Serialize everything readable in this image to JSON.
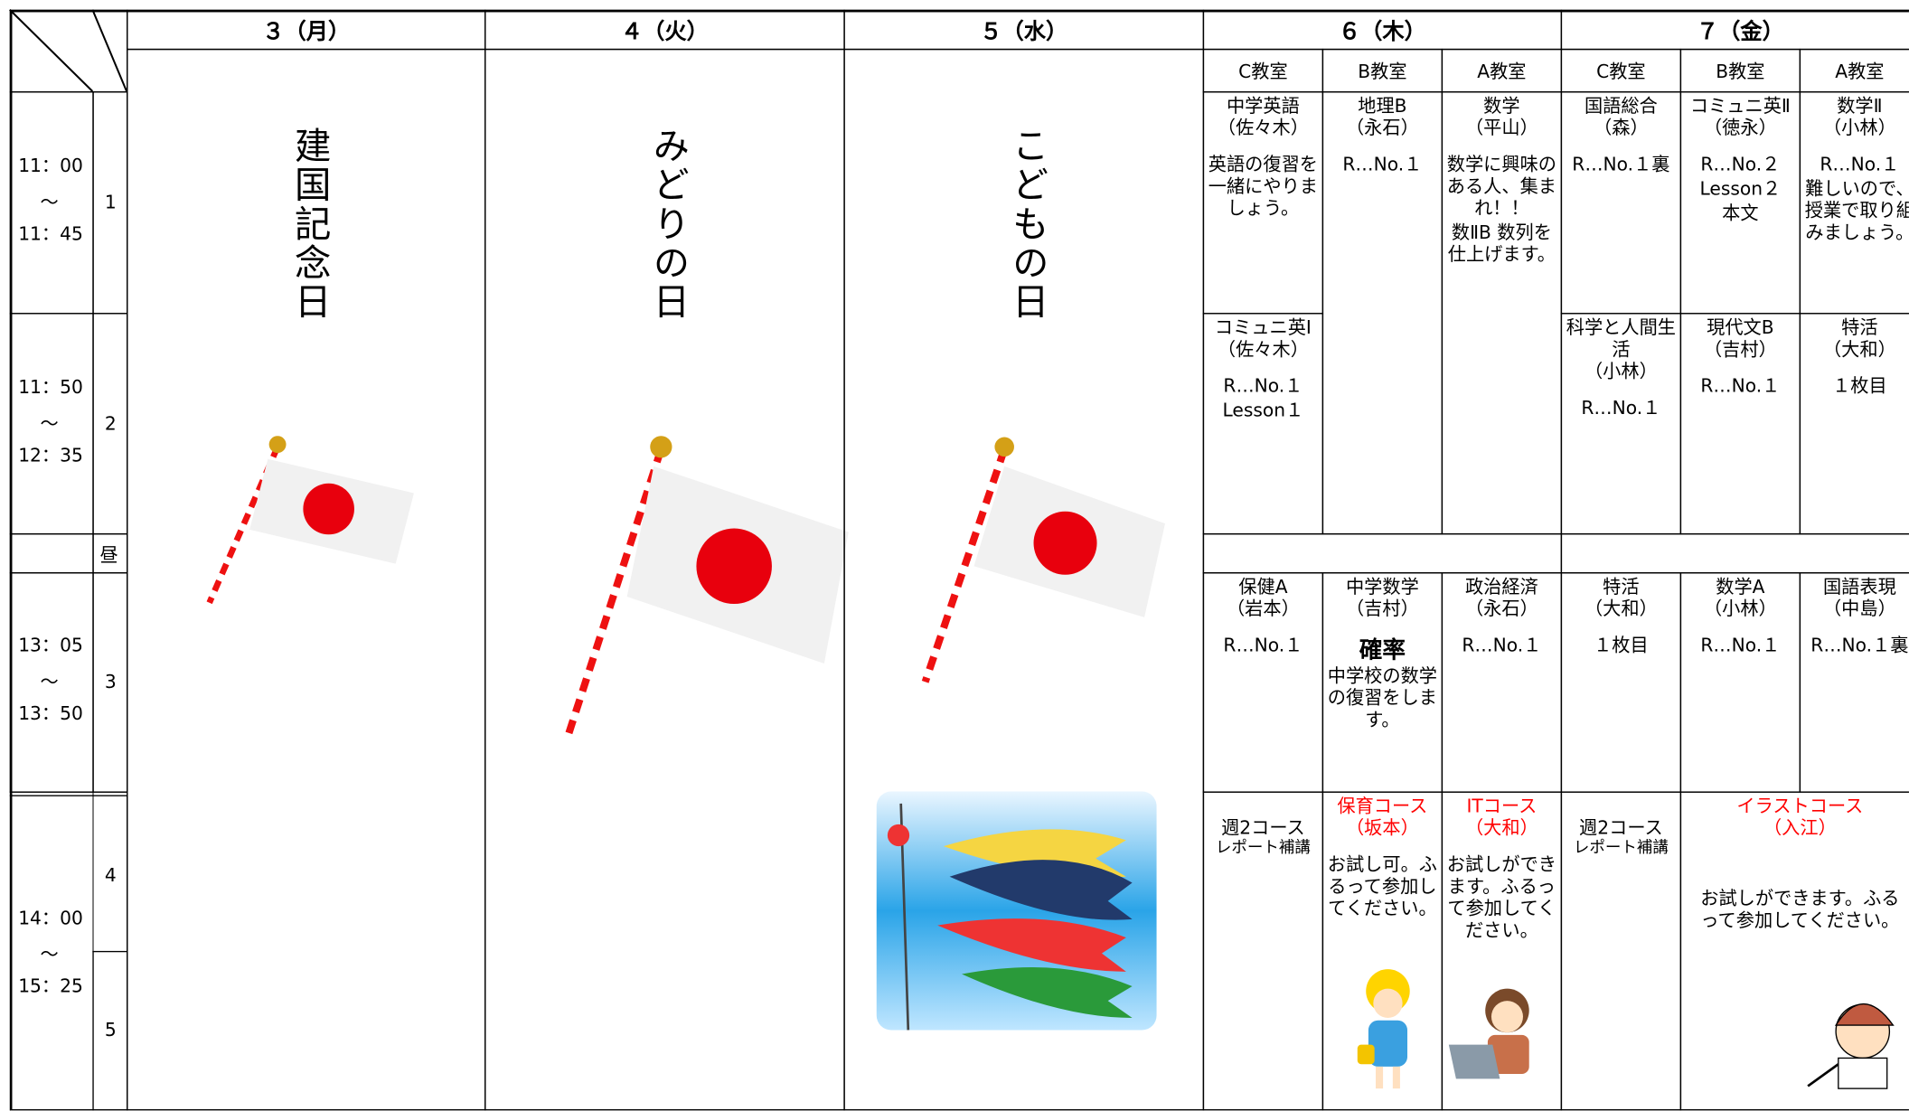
{
  "header": {
    "days": [
      "３（月）",
      "４（火）",
      "５（水）",
      "６（木）",
      "７（金）"
    ]
  },
  "rooms": [
    "C教室",
    "B教室",
    "A教室"
  ],
  "time_blocks": [
    {
      "start": "11：00",
      "tilde": "～",
      "end": "11：45"
    },
    {
      "start": "11：50",
      "tilde": "～",
      "end": "12：35"
    },
    {
      "start": "13：05",
      "tilde": "～",
      "end": "13：50"
    },
    {
      "start": "14：00",
      "tilde": "～",
      "end": "15：25"
    }
  ],
  "period_numbers": [
    "1",
    "2",
    "3",
    "4",
    "5"
  ],
  "lunch": "昼",
  "holidays": [
    "建国記念日",
    "みどりの日",
    "こどもの日"
  ],
  "cells": [
    {
      "title": "中学英語",
      "teacher": "（佐々木）",
      "notes": [
        "英語の復習を一緒にやりましょう。"
      ]
    },
    {
      "title": "コミュニ英Ⅰ",
      "teacher": "（佐々木）",
      "notes": [
        "R…No.１",
        "Lesson１"
      ]
    },
    {
      "title": "地理B",
      "teacher": "（永石）",
      "notes": [
        "R…No.１"
      ]
    },
    {
      "title": "数学",
      "teacher": "（平山）",
      "notes": [
        "数学に興味のある人、集まれ！！",
        "数ⅡB 数列を仕上げます。"
      ]
    },
    {
      "title": "国語総合",
      "teacher": "（森）",
      "notes": [
        "R…No.１裏"
      ]
    },
    {
      "title": "科学と人間生活",
      "teacher": "（小林）",
      "notes": [
        "R…No.１"
      ]
    },
    {
      "title": "コミュニ英Ⅱ",
      "teacher": "（徳永）",
      "notes": [
        "R…No.２",
        "Lesson２",
        "本文"
      ]
    },
    {
      "title": "現代文B",
      "teacher": "（吉村）",
      "notes": [
        "R…No.１"
      ]
    },
    {
      "title": "数学Ⅱ",
      "teacher": "（小林）",
      "notes": [
        "R…No.１",
        "難しいので、授業で取り組みましょう。"
      ]
    },
    {
      "title": "特活",
      "teacher": "（大和）",
      "notes": [
        "１枚目"
      ]
    },
    {
      "title": "保健A",
      "teacher": "（岩本）",
      "notes": [
        "R…No.１"
      ]
    },
    {
      "title": "中学数学",
      "teacher": "（吉村）",
      "lead": "確率",
      "notes": [
        "中学校の数学の復習をします。"
      ]
    },
    {
      "title": "政治経済",
      "teacher": "（永石）",
      "notes": [
        "R…No.１"
      ]
    },
    {
      "title": "特活",
      "teacher": "（大和）",
      "notes": [
        "１枚目"
      ]
    },
    {
      "title": "数学A",
      "teacher": "（小林）",
      "notes": [
        "R…No.１"
      ]
    },
    {
      "title": "国語表現",
      "teacher": "（中島）",
      "notes": [
        "R…No.１裏"
      ]
    },
    {
      "notes": [
        "週2コース",
        "レポート補講"
      ]
    },
    {
      "title": "保育コース",
      "teacher": "（坂本）",
      "title_color": "red",
      "notes": [
        "お試し可。ふるって参加してください。"
      ]
    },
    {
      "title": "ITコース",
      "teacher": "（大和）",
      "title_color": "red",
      "notes": [
        "お試しができます。ふるって参加してください。"
      ]
    },
    {
      "notes": [
        "週2コース",
        "レポート補講"
      ]
    },
    {
      "title": "イラストコース",
      "teacher": "（入江）",
      "title_color": "red",
      "notes": [
        "お試しができます。ふるって参加してください。"
      ]
    }
  ]
}
